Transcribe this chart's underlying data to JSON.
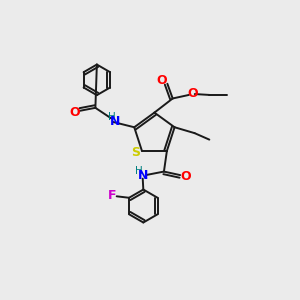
{
  "bg_color": "#ebebeb",
  "bond_color": "#1a1a1a",
  "colors": {
    "O": "#ff0000",
    "N": "#0000ff",
    "S": "#cccc00",
    "F": "#cc00cc",
    "H": "#008080",
    "C": "#1a1a1a"
  },
  "figsize": [
    3.0,
    3.0
  ],
  "dpi": 100
}
